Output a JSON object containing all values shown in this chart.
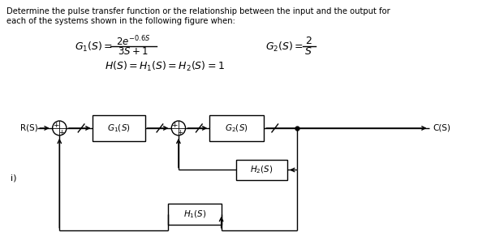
{
  "title_line1": "Determine the pulse transfer function or the relationship between the input and the output for",
  "title_line2": "each of the systems shown in the following figure when:",
  "label_R": "R(S)",
  "label_C": "C(S)",
  "label_G1": "$G_1(S)$",
  "label_G2": "$G_2(S)$",
  "label_H1": "$H_1(S)$",
  "label_H2": "$H_2(S)$",
  "label_i": "i)",
  "bg_color": "#ffffff",
  "text_color": "#000000"
}
